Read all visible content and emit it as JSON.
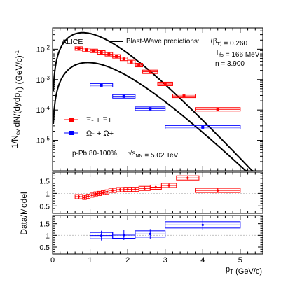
{
  "chart_data": {
    "type": "scatter",
    "experiment_label": "ALICE",
    "system_label": "p-Pb 80-100%,",
    "energy_label": "√s_NN = 5.02 TeV",
    "model": {
      "name": "Blast-Wave predictions:",
      "params": [
        "⟨β_T⟩ = 0.260",
        "T_fo = 166 MeV",
        "n = 3.900"
      ]
    },
    "x_axis": {
      "label": "p_T (GeV/c)",
      "range": [
        0,
        5.6
      ],
      "ticks": [
        0,
        1,
        2,
        3,
        4,
        5
      ]
    },
    "top_panel": {
      "ylabel": "1/N_ev dN/(dydp_T) (GeV/c)^-1",
      "yscale": "log",
      "yrange": [
        1e-06,
        0.05
      ],
      "tick_labels": [
        "10^-5",
        "10^-4",
        "10^-3",
        "10^-2"
      ],
      "series": [
        {
          "name": "Ξ- + Ξ+",
          "color": "#ff0000",
          "points": [
            {
              "x": 0.7,
              "dx": 0.1,
              "y": 0.0105
            },
            {
              "x": 0.9,
              "dx": 0.1,
              "y": 0.0095
            },
            {
              "x": 1.1,
              "dx": 0.1,
              "y": 0.0088
            },
            {
              "x": 1.3,
              "dx": 0.1,
              "y": 0.0078
            },
            {
              "x": 1.5,
              "dx": 0.1,
              "y": 0.0068
            },
            {
              "x": 1.7,
              "dx": 0.1,
              "y": 0.0058
            },
            {
              "x": 1.9,
              "dx": 0.1,
              "y": 0.0048
            },
            {
              "x": 2.1,
              "dx": 0.1,
              "y": 0.0038
            },
            {
              "x": 2.3,
              "dx": 0.1,
              "y": 0.003
            },
            {
              "x": 2.6,
              "dx": 0.2,
              "y": 0.0018
            },
            {
              "x": 3.0,
              "dx": 0.2,
              "y": 0.00072
            },
            {
              "x": 3.5,
              "dx": 0.3,
              "y": 0.00029
            },
            {
              "x": 4.4,
              "dx": 0.6,
              "y": 0.000105
            }
          ]
        },
        {
          "name": "Ω- + Ω+",
          "color": "#0000ff",
          "points": [
            {
              "x": 1.3,
              "dx": 0.3,
              "y": 0.00065
            },
            {
              "x": 1.9,
              "dx": 0.3,
              "y": 0.00028
            },
            {
              "x": 2.6,
              "dx": 0.4,
              "y": 0.00011
            },
            {
              "x": 4.0,
              "dx": 1.0,
              "y": 2.7e-05
            }
          ]
        }
      ],
      "curves": [
        {
          "name": "Blast-Wave Ξ",
          "color": "#000000",
          "norm": 0.05,
          "T": 0.3,
          "m": 1.321,
          "exp": 0.4
        },
        {
          "name": "Blast-Wave Ω",
          "color": "#000000",
          "norm": 0.0048,
          "T": 0.33,
          "m": 1.672,
          "exp": 0.4
        }
      ]
    },
    "ratio_panels": [
      {
        "ylabel": "Data/Model",
        "yrange": [
          0.2,
          1.85
        ],
        "ticks": [
          0.5,
          1,
          1.5
        ],
        "tick_labels": [
          "0.5",
          "1",
          "1.5"
        ],
        "series_color": "#ff0000",
        "points": [
          {
            "x": 0.7,
            "dx": 0.1,
            "y": 0.87
          },
          {
            "x": 0.85,
            "dx": 0.05,
            "y": 0.84
          },
          {
            "x": 0.95,
            "dx": 0.05,
            "y": 0.88
          },
          {
            "x": 1.05,
            "dx": 0.05,
            "y": 0.93
          },
          {
            "x": 1.15,
            "dx": 0.05,
            "y": 0.98
          },
          {
            "x": 1.25,
            "dx": 0.05,
            "y": 1.0
          },
          {
            "x": 1.35,
            "dx": 0.05,
            "y": 1.03
          },
          {
            "x": 1.45,
            "dx": 0.05,
            "y": 1.06
          },
          {
            "x": 1.6,
            "dx": 0.1,
            "y": 1.12
          },
          {
            "x": 1.8,
            "dx": 0.1,
            "y": 1.15
          },
          {
            "x": 2.0,
            "dx": 0.1,
            "y": 1.16
          },
          {
            "x": 2.2,
            "dx": 0.1,
            "y": 1.16
          },
          {
            "x": 2.45,
            "dx": 0.15,
            "y": 1.2
          },
          {
            "x": 2.75,
            "dx": 0.15,
            "y": 1.25
          },
          {
            "x": 3.1,
            "dx": 0.2,
            "y": 1.32
          },
          {
            "x": 3.6,
            "dx": 0.3,
            "y": 1.62
          },
          {
            "x": 4.4,
            "dx": 0.6,
            "y": 1.12
          }
        ]
      },
      {
        "ylabel": "",
        "yrange": [
          0.2,
          1.85
        ],
        "ticks": [
          0.5,
          1,
          1.5
        ],
        "tick_labels": [
          "0.5",
          "1",
          "1.5"
        ],
        "series_color": "#0000ff",
        "points": [
          {
            "x": 1.3,
            "dx": 0.3,
            "y": 0.99
          },
          {
            "x": 1.9,
            "dx": 0.3,
            "y": 1.01
          },
          {
            "x": 2.6,
            "dx": 0.4,
            "y": 1.06
          },
          {
            "x": 4.0,
            "dx": 1.0,
            "y": 1.45
          }
        ]
      }
    ]
  }
}
